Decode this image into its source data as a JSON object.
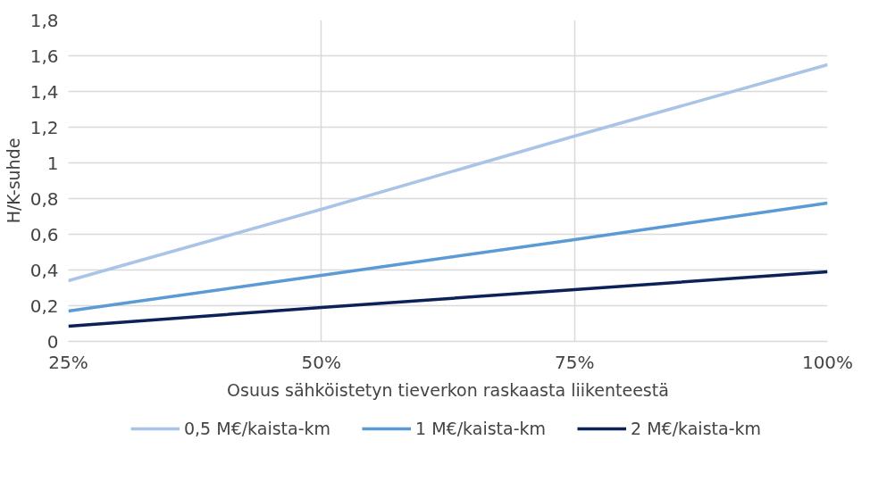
{
  "chart_data": {
    "type": "line",
    "xlabel": "Osuus sähköistetyn tieverkon raskaasta liikenteestä",
    "ylabel": "H/K-suhde",
    "x": [
      25,
      50,
      75,
      100
    ],
    "series": [
      {
        "name": "0,5 M€/kaista-km",
        "color": "#a9c4e6",
        "values": [
          0.34,
          0.74,
          1.15,
          1.55
        ]
      },
      {
        "name": "1 M€/kaista-km",
        "color": "#5b9bd5",
        "values": [
          0.17,
          0.37,
          0.57,
          0.775
        ]
      },
      {
        "name": "2 M€/kaista-km",
        "color": "#0c2158",
        "values": [
          0.085,
          0.19,
          0.29,
          0.39
        ]
      }
    ],
    "xlim": [
      25,
      100
    ],
    "xticks": [
      {
        "value": 25,
        "label": "25%"
      },
      {
        "value": 50,
        "label": "50%"
      },
      {
        "value": 75,
        "label": "75%"
      },
      {
        "value": 100,
        "label": "100%"
      }
    ],
    "ylim": [
      0,
      1.8
    ],
    "yticks": [
      0,
      {
        "value": 0.2,
        "label": "0,2"
      },
      {
        "value": 0.4,
        "label": "0,4"
      },
      {
        "value": 0.6,
        "label": "0,6"
      },
      {
        "value": 0.8,
        "label": "0,8"
      },
      1,
      {
        "value": 1.2,
        "label": "1,2"
      },
      {
        "value": 1.4,
        "label": "1,4"
      },
      {
        "value": 1.6,
        "label": "1,6"
      },
      {
        "value": 1.8,
        "label": "1,8"
      }
    ],
    "grid": true,
    "legend": "bottom",
    "marker": "none",
    "line_style": "solid"
  }
}
